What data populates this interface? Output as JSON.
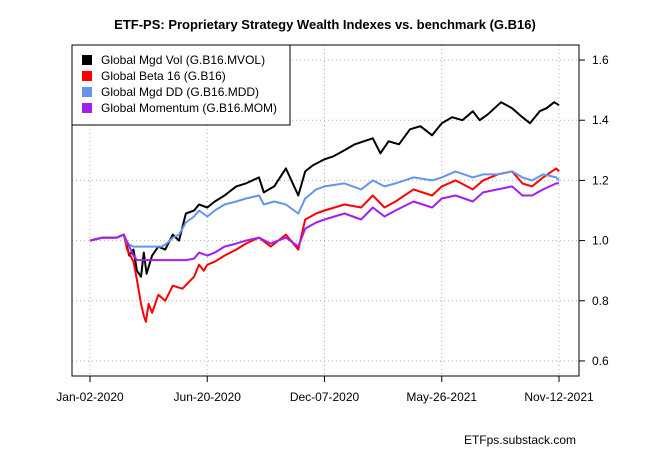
{
  "chart_data": {
    "type": "line",
    "title": "ETF-PS: Proprietary Strategy Wealth Indexes vs. benchmark (G.B16)",
    "xlabel": "",
    "ylabel": "",
    "x_ticks": [
      "Jan-02-2020",
      "Jun-20-2020",
      "Dec-07-2020",
      "May-26-2021",
      "Nov-12-2021"
    ],
    "xlim": [
      "2020-01-02",
      "2021-11-12"
    ],
    "ylim": [
      0.55,
      1.65
    ],
    "y_ticks": [
      "0.6",
      "0.8",
      "1.0",
      "1.2",
      "1.4",
      "1.6"
    ],
    "y_axis_side": "right",
    "grid": true,
    "legend_position": "top-left",
    "series": [
      {
        "name": "Global Mgd Vol (G.B16.MVOL)",
        "color": "#000000",
        "points": [
          [
            "2020-01-02",
            1.0
          ],
          [
            "2020-01-20",
            1.01
          ],
          [
            "2020-02-10",
            1.01
          ],
          [
            "2020-02-20",
            1.02
          ],
          [
            "2020-02-28",
            0.95
          ],
          [
            "2020-03-05",
            0.97
          ],
          [
            "2020-03-10",
            0.9
          ],
          [
            "2020-03-16",
            0.88
          ],
          [
            "2020-03-20",
            0.96
          ],
          [
            "2020-03-24",
            0.89
          ],
          [
            "2020-04-01",
            0.95
          ],
          [
            "2020-04-10",
            0.98
          ],
          [
            "2020-04-20",
            0.97
          ],
          [
            "2020-05-01",
            1.02
          ],
          [
            "2020-05-10",
            1.0
          ],
          [
            "2020-05-20",
            1.09
          ],
          [
            "2020-06-01",
            1.1
          ],
          [
            "2020-06-08",
            1.12
          ],
          [
            "2020-06-20",
            1.11
          ],
          [
            "2020-07-01",
            1.13
          ],
          [
            "2020-07-15",
            1.15
          ],
          [
            "2020-08-01",
            1.18
          ],
          [
            "2020-08-15",
            1.19
          ],
          [
            "2020-09-03",
            1.21
          ],
          [
            "2020-09-10",
            1.16
          ],
          [
            "2020-09-25",
            1.18
          ],
          [
            "2020-10-12",
            1.24
          ],
          [
            "2020-10-30",
            1.15
          ],
          [
            "2020-11-09",
            1.23
          ],
          [
            "2020-11-20",
            1.25
          ],
          [
            "2020-12-07",
            1.27
          ],
          [
            "2020-12-20",
            1.28
          ],
          [
            "2021-01-05",
            1.3
          ],
          [
            "2021-01-20",
            1.32
          ],
          [
            "2021-02-15",
            1.34
          ],
          [
            "2021-02-26",
            1.29
          ],
          [
            "2021-03-10",
            1.33
          ],
          [
            "2021-03-25",
            1.32
          ],
          [
            "2021-04-10",
            1.37
          ],
          [
            "2021-04-25",
            1.38
          ],
          [
            "2021-05-12",
            1.35
          ],
          [
            "2021-05-26",
            1.39
          ],
          [
            "2021-06-10",
            1.41
          ],
          [
            "2021-06-25",
            1.4
          ],
          [
            "2021-07-10",
            1.43
          ],
          [
            "2021-07-20",
            1.4
          ],
          [
            "2021-08-01",
            1.42
          ],
          [
            "2021-08-20",
            1.46
          ],
          [
            "2021-09-05",
            1.44
          ],
          [
            "2021-09-20",
            1.41
          ],
          [
            "2021-10-01",
            1.39
          ],
          [
            "2021-10-15",
            1.43
          ],
          [
            "2021-10-25",
            1.44
          ],
          [
            "2021-11-05",
            1.46
          ],
          [
            "2021-11-12",
            1.45
          ]
        ]
      },
      {
        "name": "Global Beta 16 (G.B16)",
        "color": "#ff0000",
        "points": [
          [
            "2020-01-02",
            1.0
          ],
          [
            "2020-01-20",
            1.01
          ],
          [
            "2020-02-10",
            1.01
          ],
          [
            "2020-02-20",
            1.02
          ],
          [
            "2020-02-25",
            0.97
          ],
          [
            "2020-03-05",
            0.93
          ],
          [
            "2020-03-10",
            0.87
          ],
          [
            "2020-03-16",
            0.79
          ],
          [
            "2020-03-20",
            0.75
          ],
          [
            "2020-03-23",
            0.73
          ],
          [
            "2020-03-27",
            0.79
          ],
          [
            "2020-04-01",
            0.76
          ],
          [
            "2020-04-10",
            0.82
          ],
          [
            "2020-04-20",
            0.8
          ],
          [
            "2020-05-01",
            0.85
          ],
          [
            "2020-05-15",
            0.84
          ],
          [
            "2020-06-01",
            0.88
          ],
          [
            "2020-06-08",
            0.92
          ],
          [
            "2020-06-15",
            0.9
          ],
          [
            "2020-06-20",
            0.92
          ],
          [
            "2020-07-01",
            0.93
          ],
          [
            "2020-07-15",
            0.95
          ],
          [
            "2020-08-01",
            0.97
          ],
          [
            "2020-08-15",
            0.99
          ],
          [
            "2020-09-03",
            1.01
          ],
          [
            "2020-09-20",
            0.98
          ],
          [
            "2020-10-12",
            1.02
          ],
          [
            "2020-10-30",
            0.97
          ],
          [
            "2020-11-09",
            1.07
          ],
          [
            "2020-11-25",
            1.09
          ],
          [
            "2020-12-07",
            1.1
          ],
          [
            "2021-01-05",
            1.12
          ],
          [
            "2021-01-29",
            1.11
          ],
          [
            "2021-02-15",
            1.15
          ],
          [
            "2021-03-04",
            1.11
          ],
          [
            "2021-03-20",
            1.13
          ],
          [
            "2021-04-15",
            1.17
          ],
          [
            "2021-05-12",
            1.15
          ],
          [
            "2021-05-26",
            1.18
          ],
          [
            "2021-06-15",
            1.2
          ],
          [
            "2021-07-10",
            1.17
          ],
          [
            "2021-07-25",
            1.2
          ],
          [
            "2021-08-15",
            1.22
          ],
          [
            "2021-09-05",
            1.23
          ],
          [
            "2021-09-20",
            1.19
          ],
          [
            "2021-10-04",
            1.18
          ],
          [
            "2021-10-20",
            1.21
          ],
          [
            "2021-11-08",
            1.24
          ],
          [
            "2021-11-12",
            1.23
          ]
        ]
      },
      {
        "name": "Global Mgd DD (G.B16.MDD)",
        "color": "#6495ed",
        "points": [
          [
            "2020-01-02",
            1.0
          ],
          [
            "2020-01-20",
            1.01
          ],
          [
            "2020-02-10",
            1.01
          ],
          [
            "2020-02-20",
            1.02
          ],
          [
            "2020-02-25",
            0.99
          ],
          [
            "2020-03-05",
            0.98
          ],
          [
            "2020-04-01",
            0.98
          ],
          [
            "2020-04-15",
            0.98
          ],
          [
            "2020-04-22",
            0.99
          ],
          [
            "2020-05-01",
            1.01
          ],
          [
            "2020-05-10",
            1.02
          ],
          [
            "2020-05-20",
            1.06
          ],
          [
            "2020-06-01",
            1.08
          ],
          [
            "2020-06-08",
            1.1
          ],
          [
            "2020-06-20",
            1.08
          ],
          [
            "2020-07-01",
            1.1
          ],
          [
            "2020-07-15",
            1.12
          ],
          [
            "2020-08-01",
            1.13
          ],
          [
            "2020-08-15",
            1.14
          ],
          [
            "2020-09-03",
            1.15
          ],
          [
            "2020-09-10",
            1.12
          ],
          [
            "2020-09-25",
            1.13
          ],
          [
            "2020-10-12",
            1.12
          ],
          [
            "2020-10-30",
            1.09
          ],
          [
            "2020-11-09",
            1.14
          ],
          [
            "2020-11-25",
            1.17
          ],
          [
            "2020-12-07",
            1.18
          ],
          [
            "2021-01-05",
            1.19
          ],
          [
            "2021-01-29",
            1.17
          ],
          [
            "2021-02-15",
            1.2
          ],
          [
            "2021-03-04",
            1.18
          ],
          [
            "2021-03-20",
            1.19
          ],
          [
            "2021-04-15",
            1.21
          ],
          [
            "2021-05-12",
            1.2
          ],
          [
            "2021-05-26",
            1.21
          ],
          [
            "2021-06-15",
            1.23
          ],
          [
            "2021-07-10",
            1.21
          ],
          [
            "2021-07-25",
            1.22
          ],
          [
            "2021-08-15",
            1.22
          ],
          [
            "2021-09-05",
            1.23
          ],
          [
            "2021-09-20",
            1.21
          ],
          [
            "2021-10-04",
            1.2
          ],
          [
            "2021-10-20",
            1.22
          ],
          [
            "2021-11-08",
            1.21
          ],
          [
            "2021-11-12",
            1.2
          ]
        ]
      },
      {
        "name": "Global Momentum (G.B16.MOM)",
        "color": "#a020f0",
        "points": [
          [
            "2020-01-02",
            1.0
          ],
          [
            "2020-01-20",
            1.01
          ],
          [
            "2020-02-10",
            1.01
          ],
          [
            "2020-02-20",
            1.02
          ],
          [
            "2020-02-28",
            0.98
          ],
          [
            "2020-03-05",
            0.95
          ],
          [
            "2020-03-10",
            0.935
          ],
          [
            "2020-04-01",
            0.935
          ],
          [
            "2020-05-01",
            0.935
          ],
          [
            "2020-05-20",
            0.935
          ],
          [
            "2020-06-01",
            0.94
          ],
          [
            "2020-06-08",
            0.96
          ],
          [
            "2020-06-20",
            0.95
          ],
          [
            "2020-07-01",
            0.96
          ],
          [
            "2020-07-15",
            0.98
          ],
          [
            "2020-08-01",
            0.99
          ],
          [
            "2020-08-15",
            1.0
          ],
          [
            "2020-09-03",
            1.01
          ],
          [
            "2020-09-20",
            0.99
          ],
          [
            "2020-10-12",
            1.01
          ],
          [
            "2020-10-30",
            0.98
          ],
          [
            "2020-11-09",
            1.04
          ],
          [
            "2020-11-25",
            1.06
          ],
          [
            "2020-12-07",
            1.07
          ],
          [
            "2021-01-05",
            1.09
          ],
          [
            "2021-01-29",
            1.07
          ],
          [
            "2021-02-15",
            1.11
          ],
          [
            "2021-03-04",
            1.08
          ],
          [
            "2021-03-20",
            1.1
          ],
          [
            "2021-04-15",
            1.13
          ],
          [
            "2021-05-12",
            1.11
          ],
          [
            "2021-05-26",
            1.14
          ],
          [
            "2021-06-15",
            1.15
          ],
          [
            "2021-07-10",
            1.13
          ],
          [
            "2021-07-25",
            1.16
          ],
          [
            "2021-08-15",
            1.17
          ],
          [
            "2021-09-05",
            1.18
          ],
          [
            "2021-09-20",
            1.15
          ],
          [
            "2021-10-04",
            1.15
          ],
          [
            "2021-10-20",
            1.17
          ],
          [
            "2021-11-08",
            1.19
          ],
          [
            "2021-11-12",
            1.19
          ]
        ]
      }
    ]
  },
  "footer": {
    "source": "ETFps.substack.com"
  }
}
